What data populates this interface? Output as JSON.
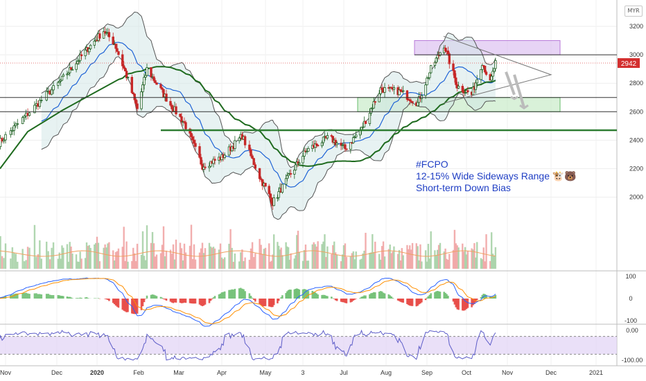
{
  "chart_data": {
    "type": "candlestick",
    "symbol": "#FCPO",
    "currency": "MYR",
    "annotation_lines": [
      "#FCPO",
      "12-15% Wide Sideways Range 🐮🐻",
      "Short-term Down Bias"
    ],
    "last_price_label": "2942",
    "x_tick_labels": [
      "Nov",
      "Dec",
      "2020",
      "Feb",
      "Mar",
      "Apr",
      "May",
      "3",
      "Jul",
      "Aug",
      "Sep",
      "Oct",
      "Nov",
      "Dec",
      "2021"
    ],
    "price_axis": {
      "ticks": [
        3200,
        3000,
        2800,
        2600,
        2400,
        2200,
        2000
      ],
      "range": [
        1860,
        3280
      ]
    },
    "macd_axis": {
      "ticks": [
        "100",
        "0",
        "-100"
      ],
      "range": [
        -130,
        130
      ]
    },
    "rsi_axis": {
      "ticks": [
        "0.00",
        "-100.00"
      ],
      "range": [
        -115,
        10
      ]
    },
    "horizontal_levels": [
      {
        "price": 2700,
        "color": "#333333"
      },
      {
        "price": 2600,
        "color": "#333333"
      },
      {
        "price": 3000,
        "color": "#333333"
      },
      {
        "price": 2470,
        "color": "#2e7d32"
      }
    ],
    "zones": [
      {
        "name": "resistance",
        "top": 3100,
        "bottom": 3000,
        "color": "#d7b7ee"
      },
      {
        "name": "support",
        "top": 2700,
        "bottom": 2600,
        "color": "#bfe8bf"
      }
    ],
    "key_prices": [
      {
        "date": "2019-10-28",
        "price": 2380
      },
      {
        "date": "2019-11-25",
        "price": 2720
      },
      {
        "date": "2019-12-20",
        "price": 2990
      },
      {
        "date": "2020-01-06",
        "price": 3170
      },
      {
        "date": "2020-01-14",
        "price": 3080
      },
      {
        "date": "2020-01-22",
        "price": 2880
      },
      {
        "date": "2020-01-31",
        "price": 2620
      },
      {
        "date": "2020-02-07",
        "price": 2900
      },
      {
        "date": "2020-02-24",
        "price": 2650
      },
      {
        "date": "2020-03-05",
        "price": 2520
      },
      {
        "date": "2020-03-18",
        "price": 2220
      },
      {
        "date": "2020-04-01",
        "price": 2280
      },
      {
        "date": "2020-04-15",
        "price": 2430
      },
      {
        "date": "2020-04-28",
        "price": 2120
      },
      {
        "date": "2020-05-07",
        "price": 1960
      },
      {
        "date": "2020-05-20",
        "price": 2140
      },
      {
        "date": "2020-06-04",
        "price": 2330
      },
      {
        "date": "2020-06-20",
        "price": 2420
      },
      {
        "date": "2020-07-02",
        "price": 2340
      },
      {
        "date": "2020-07-14",
        "price": 2480
      },
      {
        "date": "2020-07-28",
        "price": 2760
      },
      {
        "date": "2020-08-12",
        "price": 2740
      },
      {
        "date": "2020-08-25",
        "price": 2660
      },
      {
        "date": "2020-09-04",
        "price": 2900
      },
      {
        "date": "2020-09-14",
        "price": 3070
      },
      {
        "date": "2020-09-24",
        "price": 2780
      },
      {
        "date": "2020-10-05",
        "price": 2720
      },
      {
        "date": "2020-10-13",
        "price": 2950
      },
      {
        "date": "2020-10-19",
        "price": 2800
      },
      {
        "date": "2020-10-23",
        "price": 2942
      }
    ]
  }
}
